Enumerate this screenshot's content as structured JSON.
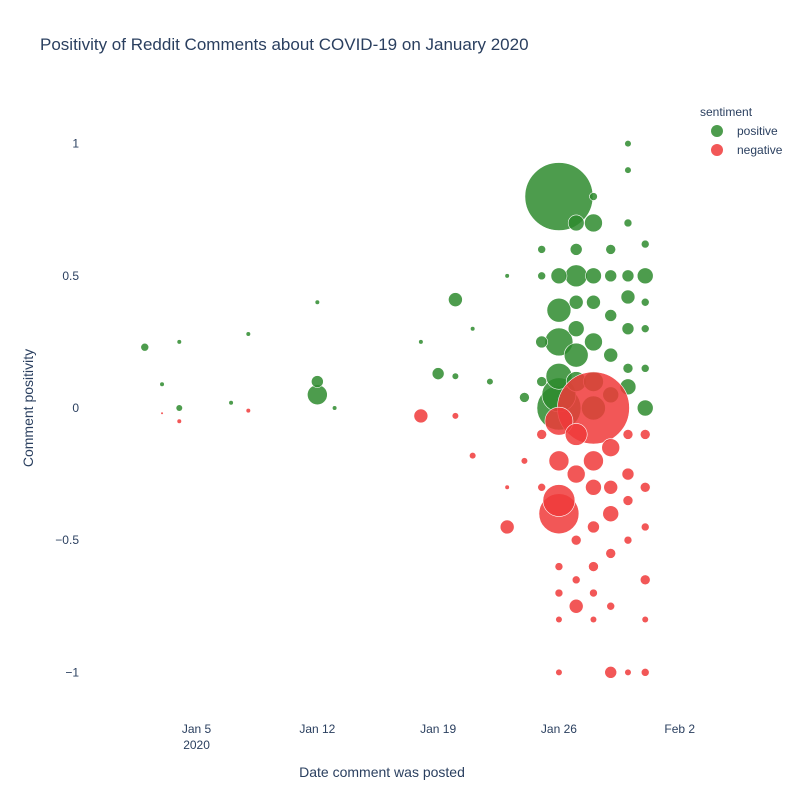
{
  "chart_data": {
    "type": "scatter",
    "title": "Positivity of Reddit Comments about COVID-19 on January 2020",
    "xlabel": "Date comment was posted",
    "ylabel": "Comment positivity",
    "xlim": [
      "2019-12-30",
      "2020-02-03"
    ],
    "ylim": [
      -1.15,
      1.15
    ],
    "grid": false,
    "legend_title": "sentiment",
    "legend_position": "top-right",
    "x_ticks": [
      {
        "date": "2020-01-05",
        "label": "Jan 5",
        "sub": "2020"
      },
      {
        "date": "2020-01-12",
        "label": "Jan 12",
        "sub": ""
      },
      {
        "date": "2020-01-19",
        "label": "Jan 19",
        "sub": ""
      },
      {
        "date": "2020-01-26",
        "label": "Jan 26",
        "sub": ""
      },
      {
        "date": "2020-02-02",
        "label": "Feb 2",
        "sub": ""
      }
    ],
    "y_ticks": [
      {
        "value": 1,
        "label": "1"
      },
      {
        "value": 0.5,
        "label": "0.5"
      },
      {
        "value": 0,
        "label": "0"
      },
      {
        "value": -0.5,
        "label": "−0.5"
      },
      {
        "value": -1,
        "label": "−1"
      }
    ],
    "series": [
      {
        "name": "positive",
        "color": "#2e8b2e",
        "points": [
          {
            "x": "2020-01-02",
            "y": 0.23,
            "s": 4
          },
          {
            "x": "2020-01-03",
            "y": 0.09,
            "s": 2
          },
          {
            "x": "2020-01-04",
            "y": 0.25,
            "s": 2
          },
          {
            "x": "2020-01-04",
            "y": 0.0,
            "s": 3
          },
          {
            "x": "2020-01-07",
            "y": 0.02,
            "s": 2
          },
          {
            "x": "2020-01-08",
            "y": 0.28,
            "s": 2
          },
          {
            "x": "2020-01-12",
            "y": 0.05,
            "s": 10
          },
          {
            "x": "2020-01-12",
            "y": 0.1,
            "s": 6
          },
          {
            "x": "2020-01-12",
            "y": 0.4,
            "s": 2
          },
          {
            "x": "2020-01-13",
            "y": 0.0,
            "s": 2
          },
          {
            "x": "2020-01-18",
            "y": 0.25,
            "s": 2
          },
          {
            "x": "2020-01-19",
            "y": 0.13,
            "s": 6
          },
          {
            "x": "2020-01-20",
            "y": 0.41,
            "s": 7
          },
          {
            "x": "2020-01-20",
            "y": 0.12,
            "s": 3
          },
          {
            "x": "2020-01-21",
            "y": 0.3,
            "s": 2
          },
          {
            "x": "2020-01-22",
            "y": 0.1,
            "s": 3
          },
          {
            "x": "2020-01-23",
            "y": 0.5,
            "s": 2
          },
          {
            "x": "2020-01-24",
            "y": 0.04,
            "s": 5
          },
          {
            "x": "2020-01-25",
            "y": 0.6,
            "s": 4
          },
          {
            "x": "2020-01-25",
            "y": 0.5,
            "s": 4
          },
          {
            "x": "2020-01-25",
            "y": 0.25,
            "s": 6
          },
          {
            "x": "2020-01-25",
            "y": 0.1,
            "s": 5
          },
          {
            "x": "2020-01-26",
            "y": 0.8,
            "s": 34
          },
          {
            "x": "2020-01-26",
            "y": 0.37,
            "s": 12
          },
          {
            "x": "2020-01-26",
            "y": 0.25,
            "s": 14
          },
          {
            "x": "2020-01-26",
            "y": 0.12,
            "s": 13
          },
          {
            "x": "2020-01-26",
            "y": 0.05,
            "s": 17
          },
          {
            "x": "2020-01-26",
            "y": 0.0,
            "s": 22
          },
          {
            "x": "2020-01-26",
            "y": 0.5,
            "s": 8
          },
          {
            "x": "2020-01-27",
            "y": 0.7,
            "s": 8
          },
          {
            "x": "2020-01-27",
            "y": 0.5,
            "s": 11
          },
          {
            "x": "2020-01-27",
            "y": 0.2,
            "s": 12
          },
          {
            "x": "2020-01-27",
            "y": 0.3,
            "s": 8
          },
          {
            "x": "2020-01-27",
            "y": 0.6,
            "s": 6
          },
          {
            "x": "2020-01-27",
            "y": 0.4,
            "s": 7
          },
          {
            "x": "2020-01-27",
            "y": 0.1,
            "s": 10
          },
          {
            "x": "2020-01-28",
            "y": 0.8,
            "s": 4
          },
          {
            "x": "2020-01-28",
            "y": 0.7,
            "s": 9
          },
          {
            "x": "2020-01-28",
            "y": 0.5,
            "s": 8
          },
          {
            "x": "2020-01-28",
            "y": 0.4,
            "s": 7
          },
          {
            "x": "2020-01-28",
            "y": 0.25,
            "s": 9
          },
          {
            "x": "2020-01-28",
            "y": 0.1,
            "s": 10
          },
          {
            "x": "2020-01-28",
            "y": 0.0,
            "s": 12
          },
          {
            "x": "2020-01-29",
            "y": 0.6,
            "s": 5
          },
          {
            "x": "2020-01-29",
            "y": 0.5,
            "s": 6
          },
          {
            "x": "2020-01-29",
            "y": 0.35,
            "s": 6
          },
          {
            "x": "2020-01-29",
            "y": 0.2,
            "s": 7
          },
          {
            "x": "2020-01-29",
            "y": 0.05,
            "s": 8
          },
          {
            "x": "2020-01-30",
            "y": 0.9,
            "s": 3
          },
          {
            "x": "2020-01-30",
            "y": 1.0,
            "s": 3
          },
          {
            "x": "2020-01-30",
            "y": 0.7,
            "s": 4
          },
          {
            "x": "2020-01-30",
            "y": 0.5,
            "s": 6
          },
          {
            "x": "2020-01-30",
            "y": 0.42,
            "s": 7
          },
          {
            "x": "2020-01-30",
            "y": 0.3,
            "s": 6
          },
          {
            "x": "2020-01-30",
            "y": 0.08,
            "s": 8
          },
          {
            "x": "2020-01-30",
            "y": 0.15,
            "s": 5
          },
          {
            "x": "2020-01-31",
            "y": 0.62,
            "s": 4
          },
          {
            "x": "2020-01-31",
            "y": 0.5,
            "s": 8
          },
          {
            "x": "2020-01-31",
            "y": 0.4,
            "s": 4
          },
          {
            "x": "2020-01-31",
            "y": 0.3,
            "s": 4
          },
          {
            "x": "2020-01-31",
            "y": 0.0,
            "s": 8
          },
          {
            "x": "2020-01-31",
            "y": 0.15,
            "s": 4
          }
        ]
      },
      {
        "name": "negative",
        "color": "#f03a3a",
        "points": [
          {
            "x": "2020-01-03",
            "y": -0.02,
            "s": 1
          },
          {
            "x": "2020-01-04",
            "y": -0.05,
            "s": 2
          },
          {
            "x": "2020-01-08",
            "y": -0.01,
            "s": 2
          },
          {
            "x": "2020-01-18",
            "y": -0.03,
            "s": 7
          },
          {
            "x": "2020-01-20",
            "y": -0.03,
            "s": 3
          },
          {
            "x": "2020-01-21",
            "y": -0.18,
            "s": 3
          },
          {
            "x": "2020-01-23",
            "y": -0.45,
            "s": 7
          },
          {
            "x": "2020-01-23",
            "y": -0.3,
            "s": 2
          },
          {
            "x": "2020-01-24",
            "y": -0.2,
            "s": 3
          },
          {
            "x": "2020-01-25",
            "y": -0.1,
            "s": 5
          },
          {
            "x": "2020-01-25",
            "y": -0.3,
            "s": 4
          },
          {
            "x": "2020-01-26",
            "y": -0.4,
            "s": 20
          },
          {
            "x": "2020-01-26",
            "y": -0.35,
            "s": 16
          },
          {
            "x": "2020-01-26",
            "y": -0.05,
            "s": 14
          },
          {
            "x": "2020-01-26",
            "y": -0.2,
            "s": 10
          },
          {
            "x": "2020-01-26",
            "y": -0.6,
            "s": 4
          },
          {
            "x": "2020-01-26",
            "y": -0.7,
            "s": 4
          },
          {
            "x": "2020-01-26",
            "y": -0.8,
            "s": 3
          },
          {
            "x": "2020-01-26",
            "y": -1.0,
            "s": 3
          },
          {
            "x": "2020-01-27",
            "y": -0.1,
            "s": 11
          },
          {
            "x": "2020-01-27",
            "y": -0.25,
            "s": 9
          },
          {
            "x": "2020-01-27",
            "y": -0.5,
            "s": 5
          },
          {
            "x": "2020-01-27",
            "y": -0.65,
            "s": 4
          },
          {
            "x": "2020-01-27",
            "y": -0.75,
            "s": 7
          },
          {
            "x": "2020-01-28",
            "y": 0.0,
            "s": 36
          },
          {
            "x": "2020-01-28",
            "y": -0.2,
            "s": 10
          },
          {
            "x": "2020-01-28",
            "y": -0.3,
            "s": 8
          },
          {
            "x": "2020-01-28",
            "y": -0.45,
            "s": 6
          },
          {
            "x": "2020-01-28",
            "y": -0.6,
            "s": 5
          },
          {
            "x": "2020-01-28",
            "y": -0.7,
            "s": 4
          },
          {
            "x": "2020-01-28",
            "y": -0.8,
            "s": 3
          },
          {
            "x": "2020-01-29",
            "y": -0.15,
            "s": 9
          },
          {
            "x": "2020-01-29",
            "y": -0.3,
            "s": 7
          },
          {
            "x": "2020-01-29",
            "y": -0.4,
            "s": 8
          },
          {
            "x": "2020-01-29",
            "y": -0.55,
            "s": 5
          },
          {
            "x": "2020-01-29",
            "y": -0.75,
            "s": 4
          },
          {
            "x": "2020-01-29",
            "y": -1.0,
            "s": 6
          },
          {
            "x": "2020-01-30",
            "y": -0.1,
            "s": 5
          },
          {
            "x": "2020-01-30",
            "y": -0.25,
            "s": 6
          },
          {
            "x": "2020-01-30",
            "y": -0.35,
            "s": 5
          },
          {
            "x": "2020-01-30",
            "y": -0.5,
            "s": 4
          },
          {
            "x": "2020-01-30",
            "y": -1.0,
            "s": 3
          },
          {
            "x": "2020-01-31",
            "y": -0.1,
            "s": 5
          },
          {
            "x": "2020-01-31",
            "y": -0.3,
            "s": 5
          },
          {
            "x": "2020-01-31",
            "y": -0.45,
            "s": 4
          },
          {
            "x": "2020-01-31",
            "y": -0.65,
            "s": 5
          },
          {
            "x": "2020-01-31",
            "y": -0.8,
            "s": 3
          },
          {
            "x": "2020-01-31",
            "y": -1.0,
            "s": 4
          }
        ]
      }
    ]
  }
}
